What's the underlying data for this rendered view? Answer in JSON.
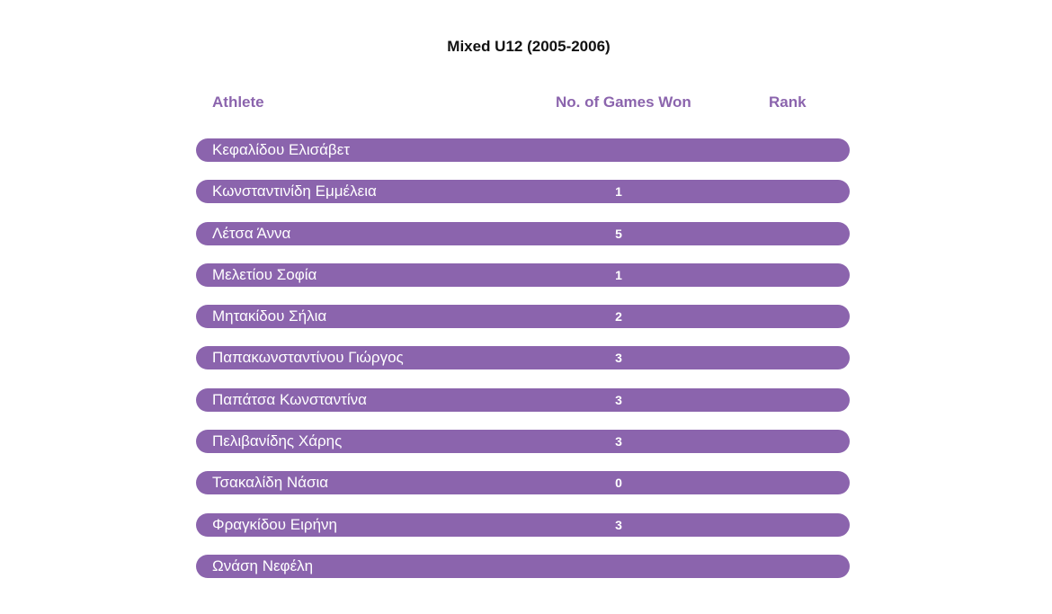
{
  "title": "Mixed U12 (2005-2006)",
  "columns": {
    "athlete": "Athlete",
    "games_won": "No. of Games Won",
    "rank": "Rank"
  },
  "rows": [
    {
      "athlete": "Κεφαλίδου Ελισάβετ",
      "games_won": "",
      "rank": ""
    },
    {
      "athlete": "Κωνσταντινίδη Εμμέλεια",
      "games_won": "1",
      "rank": ""
    },
    {
      "athlete": "Λέτσα Άννα",
      "games_won": "5",
      "rank": ""
    },
    {
      "athlete": "Μελετίου Σοφία",
      "games_won": "1",
      "rank": ""
    },
    {
      "athlete": "Μητακίδου Σήλια",
      "games_won": "2",
      "rank": ""
    },
    {
      "athlete": "Παπακωνσταντίνου Γιώργος",
      "games_won": "3",
      "rank": ""
    },
    {
      "athlete": "Παπάτσα Κωνσταντίνα",
      "games_won": "3",
      "rank": ""
    },
    {
      "athlete": "Πελιβανίδης Χάρης",
      "games_won": "3",
      "rank": ""
    },
    {
      "athlete": "Τσακαλίδη Νάσια",
      "games_won": "0",
      "rank": ""
    },
    {
      "athlete": "Φραγκίδου Ειρήνη",
      "games_won": "3",
      "rank": ""
    },
    {
      "athlete": "Ωνάση Νεφέλη",
      "games_won": "",
      "rank": ""
    }
  ],
  "colors": {
    "accent": "#8b64ad",
    "row_text": "#ffffff",
    "title_text": "#111111"
  }
}
